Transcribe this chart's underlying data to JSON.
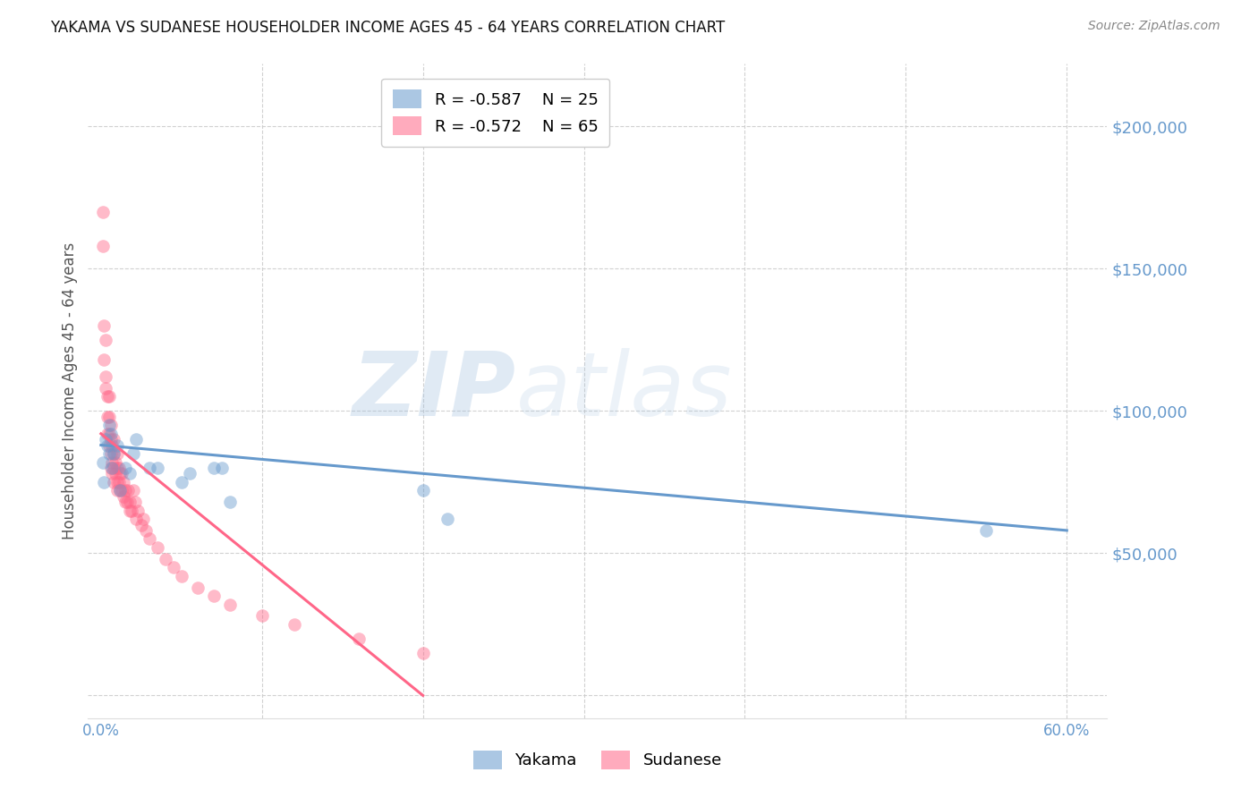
{
  "title": "YAKAMA VS SUDANESE HOUSEHOLDER INCOME AGES 45 - 64 YEARS CORRELATION CHART",
  "source": "Source: ZipAtlas.com",
  "ylabel": "Householder Income Ages 45 - 64 years",
  "ytick_values": [
    0,
    50000,
    100000,
    150000,
    200000
  ],
  "ytick_labels": [
    "",
    "$50,000",
    "$100,000",
    "$150,000",
    "$200,000"
  ],
  "xlim": [
    -0.008,
    0.625
  ],
  "ylim": [
    -8000,
    222000
  ],
  "yakama_color": "#6699cc",
  "sudanese_color": "#ff6688",
  "yakama_R": -0.587,
  "yakama_N": 25,
  "sudanese_R": -0.572,
  "sudanese_N": 65,
  "yakama_x": [
    0.001,
    0.002,
    0.003,
    0.004,
    0.005,
    0.005,
    0.006,
    0.007,
    0.008,
    0.01,
    0.012,
    0.015,
    0.018,
    0.02,
    0.022,
    0.03,
    0.035,
    0.05,
    0.055,
    0.07,
    0.075,
    0.08,
    0.2,
    0.215,
    0.55
  ],
  "yakama_y": [
    82000,
    75000,
    90000,
    88000,
    95000,
    85000,
    92000,
    80000,
    85000,
    88000,
    72000,
    80000,
    78000,
    85000,
    90000,
    80000,
    80000,
    75000,
    78000,
    80000,
    80000,
    68000,
    72000,
    62000,
    58000
  ],
  "sudanese_x": [
    0.001,
    0.001,
    0.002,
    0.002,
    0.003,
    0.003,
    0.003,
    0.004,
    0.004,
    0.004,
    0.005,
    0.005,
    0.005,
    0.005,
    0.006,
    0.006,
    0.006,
    0.006,
    0.007,
    0.007,
    0.007,
    0.008,
    0.008,
    0.008,
    0.008,
    0.009,
    0.009,
    0.01,
    0.01,
    0.01,
    0.01,
    0.011,
    0.011,
    0.012,
    0.012,
    0.013,
    0.013,
    0.014,
    0.014,
    0.015,
    0.015,
    0.016,
    0.017,
    0.018,
    0.018,
    0.019,
    0.02,
    0.021,
    0.022,
    0.023,
    0.025,
    0.026,
    0.028,
    0.03,
    0.035,
    0.04,
    0.045,
    0.05,
    0.06,
    0.07,
    0.08,
    0.1,
    0.12,
    0.16,
    0.2
  ],
  "sudanese_y": [
    170000,
    158000,
    130000,
    118000,
    125000,
    112000,
    108000,
    105000,
    98000,
    92000,
    105000,
    98000,
    92000,
    88000,
    95000,
    90000,
    85000,
    80000,
    88000,
    82000,
    78000,
    90000,
    85000,
    80000,
    75000,
    82000,
    78000,
    85000,
    80000,
    75000,
    72000,
    80000,
    75000,
    78000,
    72000,
    78000,
    72000,
    75000,
    70000,
    72000,
    68000,
    68000,
    72000,
    68000,
    65000,
    65000,
    72000,
    68000,
    62000,
    65000,
    60000,
    62000,
    58000,
    55000,
    52000,
    48000,
    45000,
    42000,
    38000,
    35000,
    32000,
    28000,
    25000,
    20000,
    15000
  ],
  "yakama_line_x": [
    0.0,
    0.6
  ],
  "yakama_line_y": [
    88000,
    58000
  ],
  "sudanese_line_x": [
    0.0,
    0.2
  ],
  "sudanese_line_y": [
    92000,
    0
  ],
  "watermark_zip": "ZIP",
  "watermark_atlas": "atlas",
  "background_color": "#ffffff",
  "grid_color": "#cccccc",
  "tick_color": "#6699cc",
  "ylabel_color": "#555555",
  "title_color": "#111111",
  "source_color": "#888888"
}
